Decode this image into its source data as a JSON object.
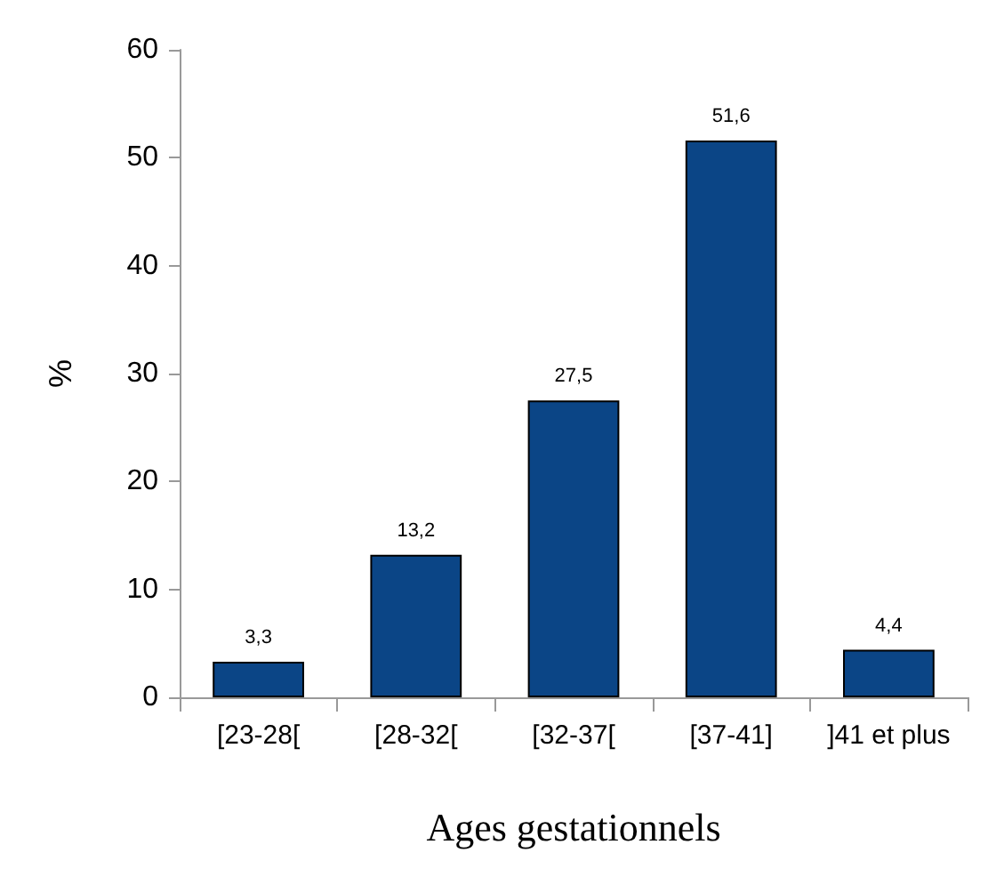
{
  "chart_data": {
    "type": "bar",
    "xlabel": "Ages gestationnels",
    "ylabel": "%",
    "categories": [
      "[23-28[",
      "[28-32[",
      "[32-37[",
      "[37-41]",
      "]41 et plus"
    ],
    "values": [
      3.3,
      13.2,
      27.5,
      51.6,
      4.4
    ],
    "value_labels": [
      "3,3",
      "13,2",
      "27,5",
      "51,6",
      "4,4"
    ],
    "color": "#0b4586",
    "ylim": [
      0,
      60
    ],
    "yticks": [
      0,
      10,
      20,
      30,
      40,
      50,
      60
    ],
    "grid": false
  }
}
